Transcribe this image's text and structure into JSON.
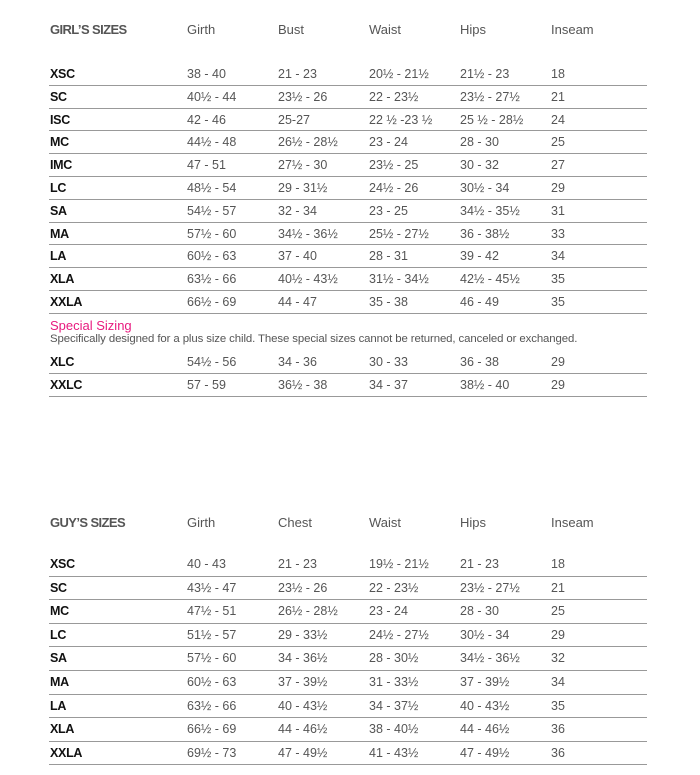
{
  "girls": {
    "title": "GIRL’S SIZES",
    "columns": [
      "Girth",
      "Bust",
      "Waist",
      "Hips",
      "Inseam"
    ],
    "rows": [
      [
        "XSC",
        "38 - 40",
        "21 - 23",
        "20½ - 21½",
        "21½ - 23",
        "18"
      ],
      [
        "SC",
        "40½ - 44",
        "23½ - 26",
        "22 - 23½",
        "23½ - 27½",
        "21"
      ],
      [
        "ISC",
        "42 - 46",
        "25-27",
        "22 ½ -23 ½",
        "25 ½ - 28½",
        "24"
      ],
      [
        "MC",
        "44½ - 48",
        "26½ - 28½",
        "23 - 24",
        "28 - 30",
        "25"
      ],
      [
        "IMC",
        "47 - 51",
        "27½ - 30",
        "23½ - 25",
        "30 - 32",
        "27"
      ],
      [
        "LC",
        "48½ - 54",
        "29 - 31½",
        "24½ - 26",
        "30½ - 34",
        "29"
      ],
      [
        "SA",
        "54½ - 57",
        "32 - 34",
        "23 - 25",
        "34½ - 35½",
        "31"
      ],
      [
        "MA",
        "57½ - 60",
        "34½ - 36½",
        "25½ - 27½",
        "36 - 38½",
        "33"
      ],
      [
        "LA",
        "60½ - 63",
        "37 - 40",
        "28 - 31",
        "39 - 42",
        "34"
      ],
      [
        "XLA",
        "63½ - 66",
        "40½ - 43½",
        "31½ - 34½",
        "42½ - 45½",
        "35"
      ],
      [
        "XXLA",
        "66½ - 69",
        "44 - 47",
        "35 - 38",
        "46 - 49",
        "35"
      ]
    ]
  },
  "special": {
    "title": "Special Sizing",
    "description": "Specifically designed for a plus size child. These special sizes cannot be returned, canceled or exchanged.",
    "rows": [
      [
        "XLC",
        "54½ - 56",
        "34 - 36",
        "30 - 33",
        "36 - 38",
        "29"
      ],
      [
        "XXLC",
        "57 - 59",
        "36½ - 38",
        "34 - 37",
        "38½ - 40",
        "29"
      ]
    ]
  },
  "guys": {
    "title": "GUY’S SIZES",
    "columns": [
      "Girth",
      "Chest",
      "Waist",
      "Hips",
      "Inseam"
    ],
    "rows": [
      [
        "XSC",
        "40 - 43",
        "21 - 23",
        "19½ - 21½",
        "21 - 23",
        "18"
      ],
      [
        "SC",
        "43½ - 47",
        "23½ - 26",
        "22 - 23½",
        "23½ - 27½",
        "21"
      ],
      [
        "MC",
        "47½ - 51",
        "26½ - 28½",
        "23 - 24",
        "28 - 30",
        "25"
      ],
      [
        "LC",
        "51½ - 57",
        "29 - 33½",
        "24½ - 27½",
        "30½ - 34",
        "29"
      ],
      [
        "SA",
        "57½ - 60",
        "34 - 36½",
        "28 - 30½",
        "34½ - 36½",
        "32"
      ],
      [
        "MA",
        "60½ - 63",
        "37 - 39½",
        "31 - 33½",
        "37 - 39½",
        "34"
      ],
      [
        "LA",
        "63½ - 66",
        "40 - 43½",
        "34 - 37½",
        "40 - 43½",
        "35"
      ],
      [
        "XLA",
        "66½ - 69",
        "44 - 46½",
        "38 - 40½",
        "44 - 46½",
        "36"
      ],
      [
        "XXLA",
        "69½ - 73",
        "47 - 49½",
        "41 - 43½",
        "47 - 49½",
        "36"
      ]
    ]
  },
  "colors": {
    "accent": "#e8197e",
    "text": "#555555",
    "label": "#111111",
    "rule": "#999999"
  }
}
